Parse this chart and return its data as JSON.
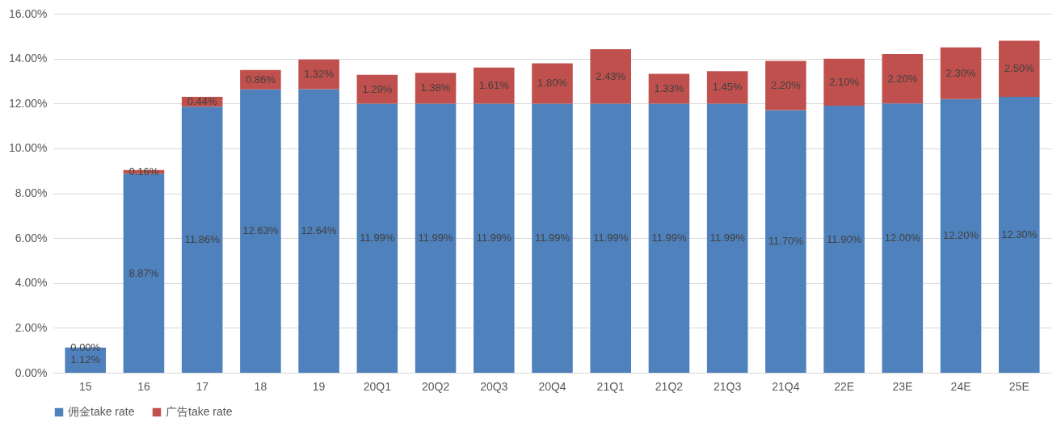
{
  "chart_data": {
    "type": "bar",
    "stacked": true,
    "categories": [
      "15",
      "16",
      "17",
      "18",
      "19",
      "20Q1",
      "20Q2",
      "20Q3",
      "20Q4",
      "21Q1",
      "21Q2",
      "21Q3",
      "21Q4",
      "22E",
      "23E",
      "24E",
      "25E"
    ],
    "series": [
      {
        "name": "佣金take rate",
        "color": "#4f81bd",
        "values": [
          1.12,
          8.87,
          11.86,
          12.63,
          12.64,
          11.99,
          11.99,
          11.99,
          11.99,
          11.99,
          11.99,
          11.99,
          11.7,
          11.9,
          12.0,
          12.2,
          12.3
        ],
        "value_labels": [
          "1.12%",
          "8.87%",
          "11.86%",
          "12.63%",
          "12.64%",
          "11.99%",
          "11.99%",
          "11.99%",
          "11.99%",
          "11.99%",
          "11.99%",
          "11.99%",
          "11.70%",
          "11.90%",
          "12.00%",
          "12.20%",
          "12.30%"
        ]
      },
      {
        "name": "广告take rate",
        "color": "#c0504d",
        "values": [
          0.0,
          0.16,
          0.44,
          0.86,
          1.32,
          1.29,
          1.38,
          1.61,
          1.8,
          2.43,
          1.33,
          1.45,
          2.2,
          2.1,
          2.2,
          2.3,
          2.5
        ],
        "value_labels": [
          "0.00%",
          "0.16%",
          "0.44%",
          "0.86%",
          "1.32%",
          "1.29%",
          "1.38%",
          "1.61%",
          "1.80%",
          "2.43%",
          "1.33%",
          "1.45%",
          "2.20%",
          "2.10%",
          "2.20%",
          "2.30%",
          "2.50%"
        ]
      }
    ],
    "ylim": [
      0,
      16
    ],
    "yticks": [
      {
        "value": 0,
        "label": "0.00%"
      },
      {
        "value": 2,
        "label": "2.00%"
      },
      {
        "value": 4,
        "label": "4.00%"
      },
      {
        "value": 6,
        "label": "6.00%"
      },
      {
        "value": 8,
        "label": "8.00%"
      },
      {
        "value": 10,
        "label": "10.00%"
      },
      {
        "value": 12,
        "label": "12.00%"
      },
      {
        "value": 14,
        "label": "14.00%"
      },
      {
        "value": 16,
        "label": "16.00%"
      }
    ],
    "grid": "y",
    "legend": "bottom"
  }
}
